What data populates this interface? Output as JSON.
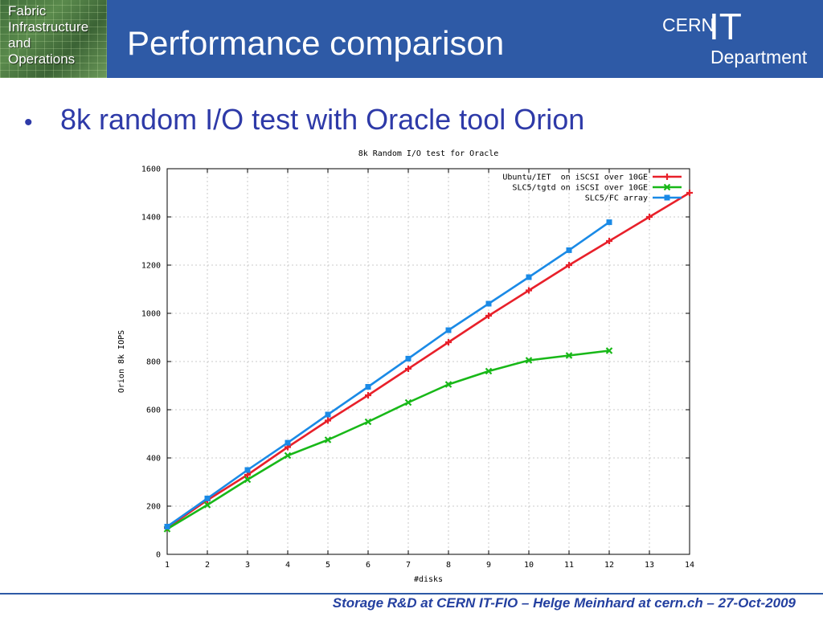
{
  "header": {
    "logo_lines": [
      "Fabric",
      "Infrastructure",
      "and",
      "Operations"
    ],
    "title": "Performance comparison",
    "brand_cern": "CERN",
    "brand_it": "IT",
    "brand_department": "Department",
    "color": "#2e5aa6"
  },
  "bullet": {
    "symbol": "•",
    "text": "8k random I/O test with Oracle tool Orion",
    "color": "#2e3aa8"
  },
  "footer": {
    "text": "Storage R&D at CERN IT-FIO – Helge Meinhard at cern.ch – 27-Oct-2009"
  },
  "chart_data": {
    "type": "line",
    "title": "8k Random I/O test for Oracle",
    "xlabel": "#disks",
    "ylabel": "Orion 8k IOPS",
    "xlim": [
      1,
      14
    ],
    "ylim": [
      0,
      1600
    ],
    "xticks": [
      1,
      2,
      3,
      4,
      5,
      6,
      7,
      8,
      9,
      10,
      11,
      12,
      13,
      14
    ],
    "yticks": [
      0,
      200,
      400,
      600,
      800,
      1000,
      1200,
      1400,
      1600
    ],
    "grid": true,
    "legend_position": "top-right",
    "series": [
      {
        "name": "Ubuntu/IET  on iSCSI over 10GE",
        "color": "#e8202a",
        "marker": "plus",
        "x": [
          1,
          2,
          3,
          4,
          5,
          6,
          7,
          8,
          9,
          10,
          11,
          12,
          13,
          14
        ],
        "y": [
          110,
          225,
          330,
          445,
          555,
          660,
          770,
          880,
          990,
          1095,
          1200,
          1300,
          1400,
          1500
        ]
      },
      {
        "name": "SLC5/tgtd on iSCSI over 10GE",
        "color": "#18b818",
        "marker": "cross",
        "x": [
          1,
          2,
          3,
          4,
          5,
          6,
          7,
          8,
          9,
          10,
          11,
          12
        ],
        "y": [
          105,
          205,
          310,
          410,
          475,
          550,
          630,
          705,
          760,
          805,
          825,
          845
        ]
      },
      {
        "name": "SLC5/FC array",
        "color": "#1a8ae6",
        "marker": "square",
        "x": [
          1,
          2,
          3,
          4,
          5,
          6,
          7,
          8,
          9,
          10,
          11,
          12
        ],
        "y": [
          115,
          232,
          350,
          463,
          580,
          695,
          812,
          930,
          1040,
          1150,
          1262,
          1378
        ]
      }
    ]
  }
}
